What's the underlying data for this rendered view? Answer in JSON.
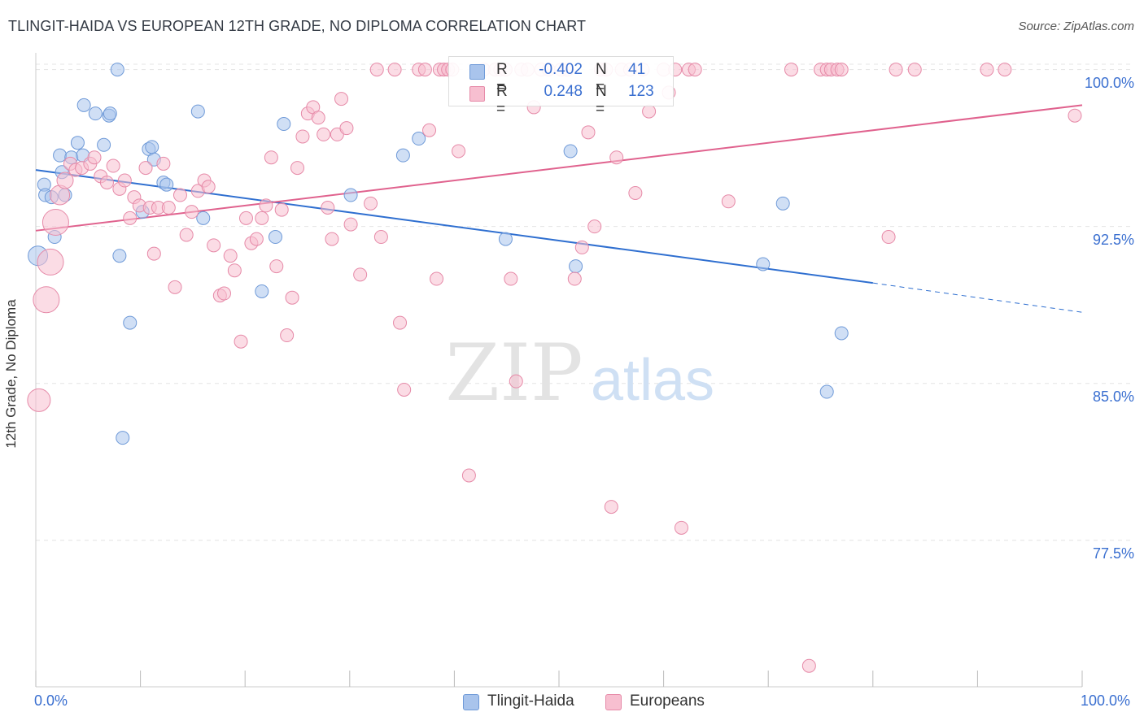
{
  "title": "TLINGIT-HAIDA VS EUROPEAN 12TH GRADE, NO DIPLOMA CORRELATION CHART",
  "source_label": "Source: ZipAtlas.com",
  "watermark": {
    "zip": "ZIP",
    "atlas": "atlas"
  },
  "legend": {
    "rows": [
      {
        "r_label": "R =",
        "r_value": "-0.402",
        "n_label": "N =",
        "n_value": "41",
        "color": "#a9c4ec",
        "border": "#6f9ad8"
      },
      {
        "r_label": "R =",
        "r_value": "0.248",
        "n_label": "N =",
        "n_value": "123",
        "color": "#f7bfd0",
        "border": "#e68aa8"
      }
    ]
  },
  "bottom_legend": [
    {
      "label": "Tlingit-Haida",
      "color": "#a9c4ec",
      "border": "#6f9ad8"
    },
    {
      "label": "Europeans",
      "color": "#f7bfd0",
      "border": "#e68aa8"
    }
  ],
  "chart_data": {
    "type": "scatter",
    "title": "TLINGIT-HAIDA VS EUROPEAN 12TH GRADE, NO DIPLOMA CORRELATION CHART",
    "xlabel": "",
    "ylabel": "12th Grade, No Diploma",
    "xlim": [
      0,
      100
    ],
    "ylim": [
      70.5,
      100.8
    ],
    "x_tick_labels": [
      "0.0%",
      "100.0%"
    ],
    "y_ticks": [
      100.0,
      92.5,
      85.0,
      77.5
    ],
    "y_tick_labels": [
      "100.0%",
      "92.5%",
      "85.0%",
      "77.5%"
    ],
    "grid": true,
    "legend_placement": "top-center",
    "series": [
      {
        "name": "Tlingit-Haida",
        "color": "#6f9ad8",
        "fill": "#a9c4ec",
        "trend": {
          "x": [
            0,
            80
          ],
          "y": [
            95.2,
            89.8
          ],
          "dashed_to": [
            100,
            88.4
          ],
          "color": "#2f6fd0"
        },
        "points": [
          [
            0.2,
            91.1,
            12
          ],
          [
            0.8,
            94.5,
            8
          ],
          [
            0.9,
            94.0,
            8
          ],
          [
            1.5,
            93.9,
            8
          ],
          [
            1.8,
            92.0,
            8
          ],
          [
            2.3,
            95.9,
            8
          ],
          [
            2.5,
            95.1,
            8
          ],
          [
            2.8,
            94.0,
            8
          ],
          [
            3.4,
            95.8,
            8
          ],
          [
            4.0,
            96.5,
            8
          ],
          [
            4.5,
            95.9,
            8
          ],
          [
            4.6,
            98.3,
            8
          ],
          [
            5.7,
            97.9,
            8
          ],
          [
            6.5,
            96.4,
            8
          ],
          [
            7.0,
            97.8,
            8
          ],
          [
            7.1,
            97.9,
            8
          ],
          [
            7.8,
            100.0,
            8
          ],
          [
            8.0,
            91.1,
            8
          ],
          [
            8.3,
            82.4,
            8
          ],
          [
            9.0,
            87.9,
            8
          ],
          [
            10.2,
            93.2,
            8
          ],
          [
            10.8,
            96.2,
            8
          ],
          [
            11.1,
            96.3,
            8
          ],
          [
            11.3,
            95.7,
            8
          ],
          [
            12.2,
            94.6,
            8
          ],
          [
            12.5,
            94.5,
            8
          ],
          [
            15.5,
            98.0,
            8
          ],
          [
            16.0,
            92.9,
            8
          ],
          [
            21.6,
            89.4,
            8
          ],
          [
            22.9,
            92.0,
            8
          ],
          [
            23.7,
            97.4,
            8
          ],
          [
            30.1,
            94.0,
            8
          ],
          [
            35.1,
            95.9,
            8
          ],
          [
            36.6,
            96.7,
            8
          ],
          [
            44.9,
            91.9,
            8
          ],
          [
            51.1,
            96.1,
            8
          ],
          [
            51.6,
            90.6,
            8
          ],
          [
            69.5,
            90.7,
            8
          ],
          [
            71.4,
            93.6,
            8
          ],
          [
            77.0,
            87.4,
            8
          ],
          [
            75.6,
            84.6,
            8
          ]
        ]
      },
      {
        "name": "Europeans",
        "color": "#e68aa8",
        "fill": "#f7bfd0",
        "trend": {
          "x": [
            0,
            100
          ],
          "y": [
            92.3,
            98.3
          ],
          "color": "#e0628e"
        },
        "points": [
          [
            0.3,
            84.2,
            14
          ],
          [
            1.0,
            89.0,
            16
          ],
          [
            1.4,
            90.8,
            16
          ],
          [
            1.9,
            92.7,
            16
          ],
          [
            2.3,
            94.0,
            12
          ],
          [
            2.8,
            94.7,
            10
          ],
          [
            3.3,
            95.5,
            8
          ],
          [
            3.8,
            95.2,
            8
          ],
          [
            4.4,
            95.3,
            8
          ],
          [
            5.2,
            95.5,
            8
          ],
          [
            5.6,
            95.8,
            8
          ],
          [
            6.2,
            94.9,
            8
          ],
          [
            6.8,
            94.6,
            8
          ],
          [
            7.4,
            95.4,
            8
          ],
          [
            8.0,
            94.3,
            8
          ],
          [
            8.5,
            94.7,
            8
          ],
          [
            9.0,
            92.9,
            8
          ],
          [
            9.4,
            93.9,
            8
          ],
          [
            9.9,
            93.5,
            8
          ],
          [
            10.5,
            95.3,
            8
          ],
          [
            10.9,
            93.4,
            8
          ],
          [
            11.3,
            91.2,
            8
          ],
          [
            11.7,
            93.4,
            8
          ],
          [
            12.2,
            95.5,
            8
          ],
          [
            12.7,
            93.4,
            8
          ],
          [
            13.3,
            89.6,
            8
          ],
          [
            13.8,
            94.0,
            8
          ],
          [
            14.4,
            92.1,
            8
          ],
          [
            14.9,
            93.2,
            8
          ],
          [
            15.5,
            94.2,
            8
          ],
          [
            16.1,
            94.7,
            8
          ],
          [
            16.5,
            94.4,
            8
          ],
          [
            17.0,
            91.6,
            8
          ],
          [
            17.6,
            89.2,
            8
          ],
          [
            18.0,
            89.3,
            8
          ],
          [
            18.6,
            91.1,
            8
          ],
          [
            19.0,
            90.4,
            8
          ],
          [
            19.6,
            87.0,
            8
          ],
          [
            20.1,
            92.9,
            8
          ],
          [
            20.6,
            91.7,
            8
          ],
          [
            21.1,
            91.9,
            8
          ],
          [
            21.6,
            92.9,
            8
          ],
          [
            22.0,
            93.5,
            8
          ],
          [
            22.5,
            95.8,
            8
          ],
          [
            23.0,
            90.6,
            8
          ],
          [
            23.5,
            93.3,
            8
          ],
          [
            24.0,
            87.3,
            8
          ],
          [
            24.5,
            89.1,
            8
          ],
          [
            25.0,
            95.3,
            8
          ],
          [
            25.5,
            96.8,
            8
          ],
          [
            26.0,
            97.9,
            8
          ],
          [
            26.5,
            98.2,
            8
          ],
          [
            27.0,
            97.7,
            8
          ],
          [
            27.5,
            96.9,
            8
          ],
          [
            27.9,
            93.4,
            8
          ],
          [
            28.3,
            91.9,
            8
          ],
          [
            28.8,
            96.9,
            8
          ],
          [
            29.2,
            98.6,
            8
          ],
          [
            29.7,
            97.2,
            8
          ],
          [
            30.1,
            92.6,
            8
          ],
          [
            31.0,
            90.2,
            8
          ],
          [
            32.0,
            93.6,
            8
          ],
          [
            32.6,
            100.0,
            8
          ],
          [
            33.0,
            92.0,
            8
          ],
          [
            34.3,
            100.0,
            8
          ],
          [
            34.8,
            87.9,
            8
          ],
          [
            35.2,
            84.7,
            8
          ],
          [
            36.6,
            100.0,
            8
          ],
          [
            37.2,
            100.0,
            8
          ],
          [
            37.6,
            97.1,
            8
          ],
          [
            38.3,
            90.0,
            8
          ],
          [
            38.6,
            100.0,
            8
          ],
          [
            39.0,
            100.0,
            8
          ],
          [
            39.4,
            100.0,
            8
          ],
          [
            39.8,
            100.0,
            8
          ],
          [
            40.4,
            96.1,
            8
          ],
          [
            41.4,
            80.6,
            8
          ],
          [
            42.8,
            100.0,
            8
          ],
          [
            43.9,
            100.0,
            8
          ],
          [
            44.4,
            100.0,
            8
          ],
          [
            44.9,
            100.0,
            8
          ],
          [
            45.4,
            90.0,
            8
          ],
          [
            45.9,
            85.1,
            8
          ],
          [
            46.4,
            100.0,
            8
          ],
          [
            47.0,
            100.0,
            8
          ],
          [
            47.6,
            98.2,
            8
          ],
          [
            48.3,
            100.0,
            8
          ],
          [
            49.0,
            100.0,
            8
          ],
          [
            50.2,
            100.0,
            8
          ],
          [
            50.8,
            100.0,
            8
          ],
          [
            51.5,
            90.0,
            8
          ],
          [
            52.2,
            91.5,
            8
          ],
          [
            52.8,
            97.0,
            8
          ],
          [
            53.4,
            92.5,
            8
          ],
          [
            54.0,
            100.0,
            8
          ],
          [
            54.5,
            100.0,
            8
          ],
          [
            55.0,
            79.1,
            8
          ],
          [
            55.5,
            95.8,
            8
          ],
          [
            56.0,
            100.0,
            8
          ],
          [
            56.8,
            100.0,
            8
          ],
          [
            57.3,
            94.1,
            8
          ],
          [
            58.0,
            100.0,
            8
          ],
          [
            58.6,
            98.0,
            8
          ],
          [
            60.0,
            100.0,
            8
          ],
          [
            60.5,
            98.9,
            8
          ],
          [
            61.1,
            100.0,
            8
          ],
          [
            61.7,
            78.1,
            8
          ],
          [
            62.4,
            100.0,
            8
          ],
          [
            63.0,
            100.0,
            8
          ],
          [
            66.2,
            93.7,
            8
          ],
          [
            72.2,
            100.0,
            8
          ],
          [
            73.9,
            71.5,
            8
          ],
          [
            75.0,
            100.0,
            8
          ],
          [
            75.6,
            100.0,
            8
          ],
          [
            76.0,
            100.0,
            8
          ],
          [
            76.6,
            100.0,
            8
          ],
          [
            77.0,
            100.0,
            8
          ],
          [
            81.5,
            92.0,
            8
          ],
          [
            82.2,
            100.0,
            8
          ],
          [
            84.0,
            100.0,
            8
          ],
          [
            90.9,
            100.0,
            8
          ],
          [
            92.6,
            100.0,
            8
          ],
          [
            99.3,
            97.8,
            8
          ]
        ]
      }
    ]
  }
}
